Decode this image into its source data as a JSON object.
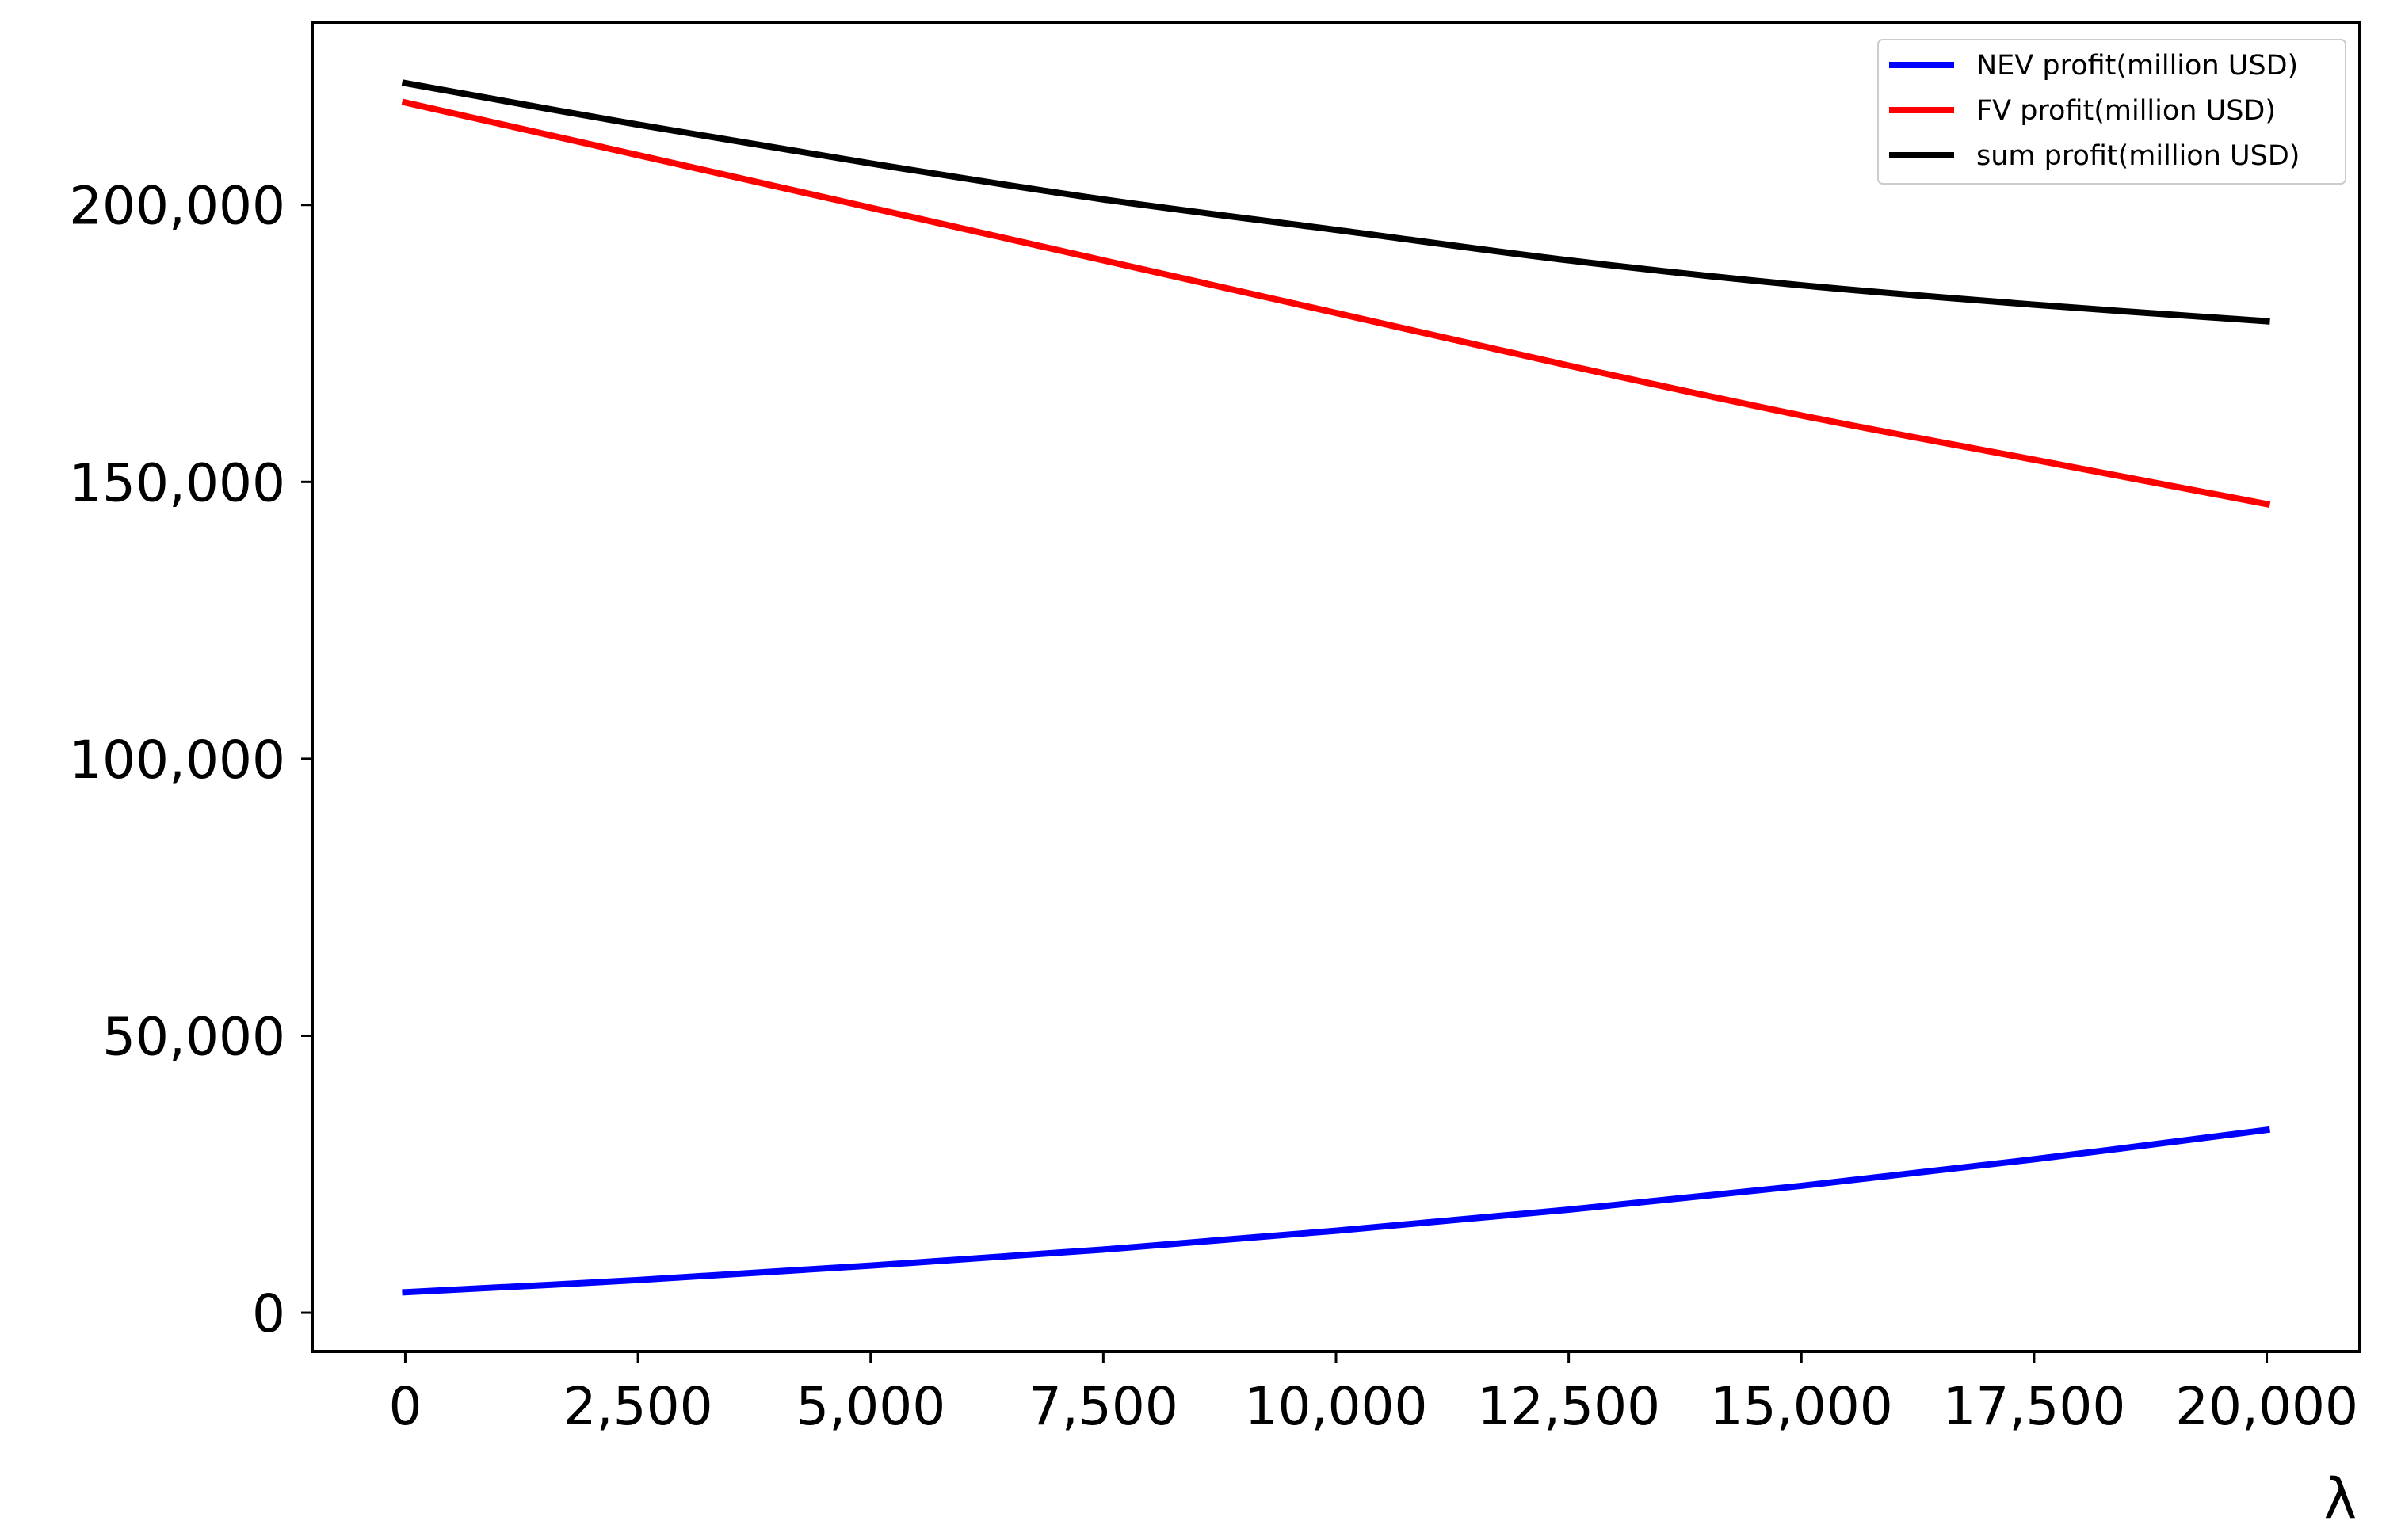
{
  "chart_data": {
    "type": "line",
    "title": "",
    "xlabel": "λ",
    "ylabel": "",
    "xlim": [
      -1000,
      21000
    ],
    "ylim": [
      -7000,
      233000
    ],
    "xticks": [
      0,
      2500,
      5000,
      7500,
      10000,
      12500,
      15000,
      17500,
      20000
    ],
    "xtick_labels": [
      "0",
      "2,500",
      "5,000",
      "7,500",
      "10,000",
      "12,500",
      "15,000",
      "17,500",
      "20,000"
    ],
    "yticks": [
      0,
      50000,
      100000,
      150000,
      200000
    ],
    "ytick_labels": [
      "0",
      "50,000",
      "100,000",
      "150,000",
      "200,000"
    ],
    "grid": false,
    "legend_position": "top-right",
    "x": [
      0,
      2500,
      5000,
      7500,
      10000,
      12500,
      15000,
      17500,
      20000
    ],
    "series": [
      {
        "name": "NEV profit(million USD)",
        "color": "#0000ff",
        "values": [
          3700,
          5900,
          8500,
          11400,
          14800,
          18600,
          22900,
          27700,
          33000
        ]
      },
      {
        "name": "FV profit(million USD)",
        "color": "#ff0000",
        "values": [
          218500,
          209000,
          199500,
          190000,
          180500,
          171000,
          162000,
          154000,
          146000
        ]
      },
      {
        "name": "sum profit(million USD)",
        "color": "#000000",
        "values": [
          222000,
          214500,
          207500,
          201000,
          195500,
          190000,
          185500,
          182000,
          179000
        ]
      }
    ]
  }
}
